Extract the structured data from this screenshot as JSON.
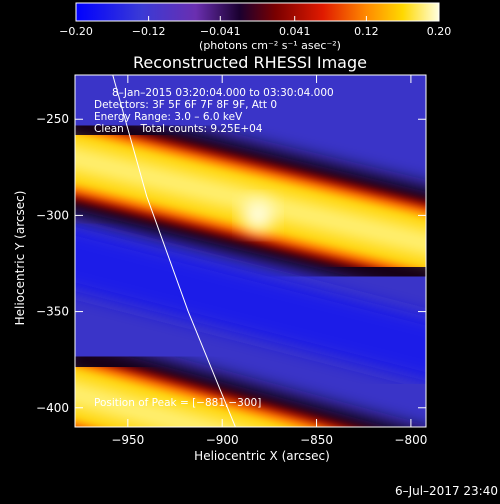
{
  "chart_data": {
    "type": "heatmap",
    "title": "Reconstructed RHESSI Image",
    "xlabel": "Heliocentric X (arcsec)",
    "ylabel": "Heliocentric Y (arcsec)",
    "xlim": [
      -978,
      -792
    ],
    "ylim": [
      -410,
      -227
    ],
    "xticks": [
      -950,
      -900,
      -850,
      -800
    ],
    "xtick_labels": [
      "−950",
      "−900",
      "−850",
      "−800"
    ],
    "yticks": [
      -250,
      -300,
      -350,
      -400
    ],
    "ytick_labels": [
      "−250",
      "−300",
      "−350",
      "−400"
    ],
    "colorbar": {
      "ticks": [
        -0.2,
        -0.12,
        -0.041,
        0.041,
        0.12,
        0.2
      ],
      "tick_labels": [
        "−0.20",
        "−0.12",
        "−0.041",
        "0.041",
        "0.12",
        "0.20"
      ],
      "unit_label": "(photons cm⁻² s⁻¹ asec⁻²)",
      "range": [
        -0.2,
        0.2
      ]
    },
    "annotations": {
      "time_range": "8–Jan–2015 03:20:04.000 to 03:30:04.000",
      "detectors": "Detectors: 3F 5F 6F 7F 8F 9F, Att 0",
      "energy": "Energy Range: 3.0 – 6.0 keV",
      "clean": "Clean     Total counts: 9.25E+04",
      "peak": "Position of Peak = [−881,−300]"
    },
    "peak_position": [
      -881,
      -300
    ],
    "bands": [
      {
        "level": "high",
        "y_at_x_min": -268,
        "y_at_x_max": -317
      },
      {
        "level": "high",
        "y_at_x_min": -390,
        "y_at_x_max": -445
      },
      {
        "level": "low",
        "y_at_x_min": -320,
        "y_at_x_max": -372
      }
    ],
    "limb_curve": [
      [
        -958,
        -227
      ],
      [
        -940,
        -290
      ],
      [
        -918,
        -350
      ],
      [
        -893,
        -410
      ]
    ]
  },
  "footer": {
    "plot_date": "6–Jul–2017 23:40"
  },
  "colors": {
    "background": "#000000",
    "axes": "#ffffff",
    "colormap": [
      "#0000ff",
      "#3a3ad6",
      "#6a2fb0",
      "#1a0030",
      "#7a0000",
      "#e01a00",
      "#ff8a00",
      "#ffd800",
      "#ffffe0"
    ]
  }
}
